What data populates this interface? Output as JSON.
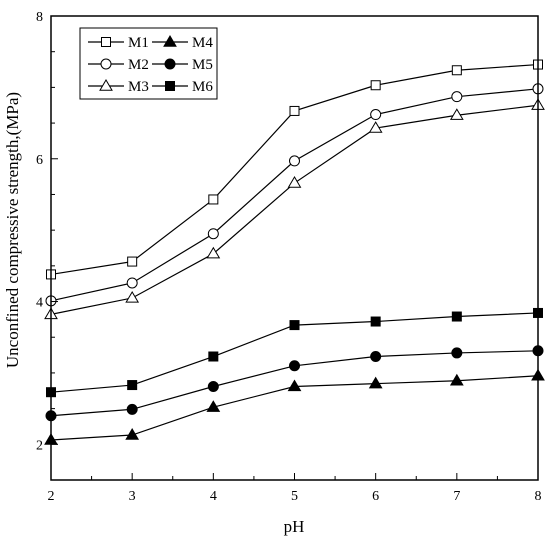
{
  "chart_data": {
    "type": "line",
    "xlabel": "pH",
    "ylabel": "Unconfined compressive strength,(MPa)",
    "xlim": [
      2,
      8
    ],
    "ylim": [
      1.5,
      8
    ],
    "xticks": [
      "2",
      "3",
      "4",
      "5",
      "6",
      "7",
      "8"
    ],
    "yticks": [
      "2",
      "4",
      "6",
      "8"
    ],
    "grid": false,
    "legend_position": "top-left",
    "x": [
      2,
      3,
      4,
      5,
      6,
      7,
      8
    ],
    "series": [
      {
        "name": "M1",
        "marker": "square-open",
        "values": [
          4.38,
          4.56,
          5.43,
          6.67,
          7.03,
          7.24,
          7.32
        ]
      },
      {
        "name": "M2",
        "marker": "circle-open",
        "values": [
          4.01,
          4.26,
          4.95,
          5.97,
          6.62,
          6.87,
          6.98
        ]
      },
      {
        "name": "M3",
        "marker": "triangle-open",
        "values": [
          3.82,
          4.05,
          4.67,
          5.66,
          6.43,
          6.61,
          6.75
        ]
      },
      {
        "name": "M4",
        "marker": "triangle-filled",
        "values": [
          2.06,
          2.13,
          2.52,
          2.81,
          2.85,
          2.89,
          2.96
        ]
      },
      {
        "name": "M5",
        "marker": "circle-filled",
        "values": [
          2.4,
          2.49,
          2.81,
          3.1,
          3.23,
          3.28,
          3.31
        ]
      },
      {
        "name": "M6",
        "marker": "square-filled",
        "values": [
          2.73,
          2.83,
          3.23,
          3.67,
          3.72,
          3.79,
          3.84
        ]
      }
    ]
  }
}
